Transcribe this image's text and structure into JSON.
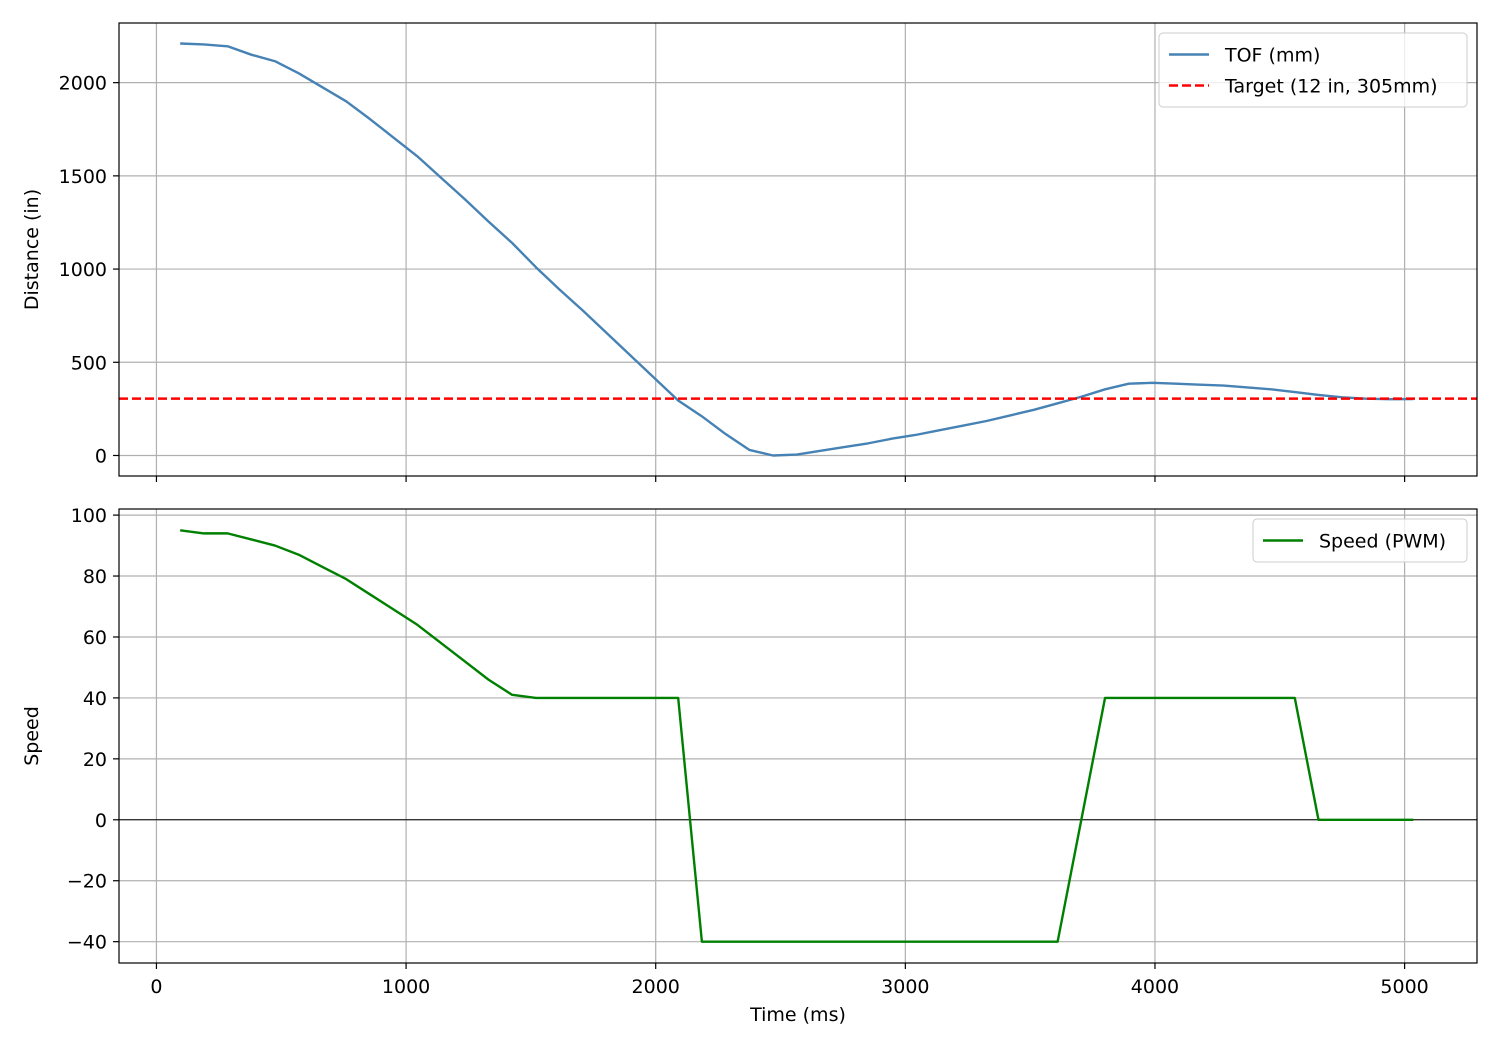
{
  "chart_data": [
    {
      "type": "line",
      "xlim": [
        -150,
        5290
      ],
      "ylim": [
        -110,
        2320
      ],
      "grid": true,
      "xlabel": "",
      "ylabel": "Distance (in)",
      "yticks": [
        0,
        500,
        1000,
        1500,
        2000
      ],
      "xticks": [
        0,
        1000,
        2000,
        3000,
        4000,
        5000
      ],
      "show_x_tick_labels": false,
      "legend_position": "top-right",
      "series": [
        {
          "name": "TOF (mm)",
          "color": "#4682b4",
          "style": "solid",
          "x": [
            95,
            190,
            285,
            380,
            475,
            570,
            665,
            760,
            855,
            950,
            1045,
            1140,
            1235,
            1330,
            1425,
            1520,
            1615,
            1710,
            1805,
            1900,
            1995,
            2090,
            2185,
            2280,
            2375,
            2470,
            2565,
            2660,
            2755,
            2850,
            2945,
            3040,
            3135,
            3230,
            3325,
            3420,
            3515,
            3610,
            3705,
            3800,
            3895,
            3990,
            4085,
            4180,
            4275,
            4370,
            4465,
            4560,
            4655,
            4750,
            4845,
            4940,
            5035
          ],
          "y": [
            2210,
            2205,
            2195,
            2150,
            2115,
            2050,
            1975,
            1900,
            1805,
            1705,
            1605,
            1490,
            1375,
            1255,
            1140,
            1010,
            890,
            775,
            655,
            535,
            415,
            295,
            210,
            115,
            30,
            0,
            5,
            25,
            45,
            65,
            90,
            110,
            135,
            160,
            185,
            215,
            245,
            280,
            315,
            355,
            385,
            390,
            385,
            380,
            375,
            365,
            355,
            340,
            325,
            312,
            305,
            302,
            303
          ]
        },
        {
          "name": "Target (12 in, 305mm)",
          "color": "#ff0000",
          "style": "dashed",
          "hline": 305
        }
      ]
    },
    {
      "type": "line",
      "xlim": [
        -150,
        5290
      ],
      "ylim": [
        -47,
        102
      ],
      "grid": true,
      "xlabel": "Time (ms)",
      "ylabel": "Speed",
      "yticks": [
        -40,
        -20,
        0,
        20,
        40,
        60,
        80,
        100
      ],
      "ytick_labels": [
        "−40",
        "−20",
        "0",
        "20",
        "40",
        "60",
        "80",
        "100"
      ],
      "xticks": [
        0,
        1000,
        2000,
        3000,
        4000,
        5000
      ],
      "show_x_tick_labels": true,
      "zero_line": true,
      "legend_position": "top-right",
      "series": [
        {
          "name": "Speed (PWM)",
          "color": "#008000",
          "style": "solid",
          "x": [
            95,
            190,
            285,
            380,
            475,
            570,
            665,
            760,
            855,
            950,
            1045,
            1140,
            1235,
            1330,
            1425,
            1520,
            1615,
            1710,
            1805,
            1900,
            1995,
            2090,
            2185,
            2280,
            2375,
            2470,
            2565,
            2660,
            2755,
            2850,
            2945,
            3040,
            3135,
            3230,
            3325,
            3420,
            3515,
            3610,
            3705,
            3800,
            3895,
            3990,
            4085,
            4180,
            4275,
            4370,
            4465,
            4560,
            4655,
            4750,
            4845,
            4940,
            5035
          ],
          "y": [
            95,
            94,
            94,
            92,
            90,
            87,
            83,
            79,
            74,
            69,
            64,
            58,
            52,
            46,
            41,
            40,
            40,
            40,
            40,
            40,
            40,
            40,
            -40,
            -40,
            -40,
            -40,
            -40,
            -40,
            -40,
            -40,
            -40,
            -40,
            -40,
            -40,
            -40,
            -40,
            -40,
            -40,
            0,
            40,
            40,
            40,
            40,
            40,
            40,
            40,
            40,
            40,
            0,
            0,
            0,
            0,
            0
          ]
        }
      ]
    }
  ]
}
